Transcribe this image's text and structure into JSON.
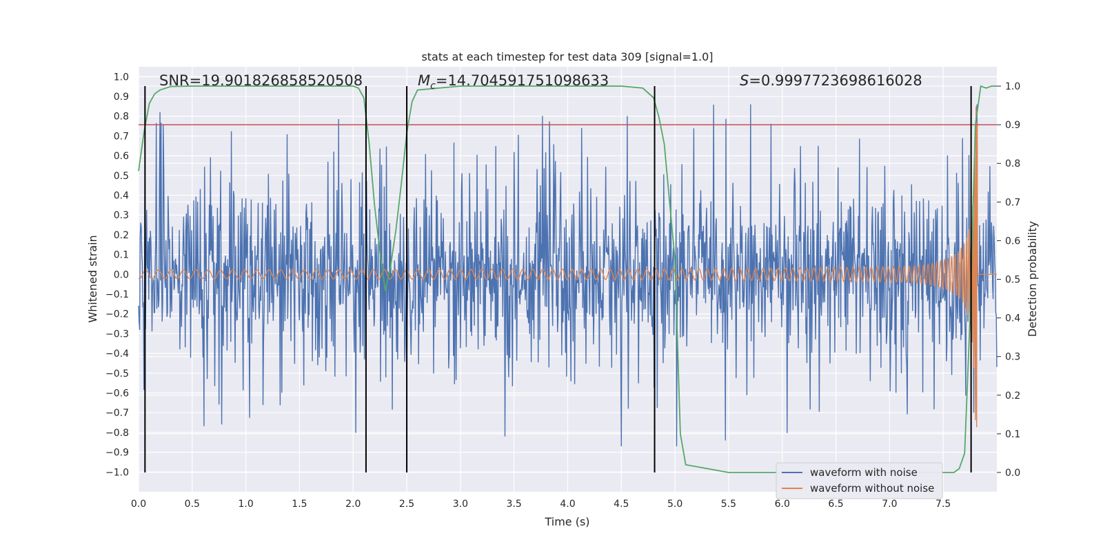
{
  "chart_data": {
    "type": "line",
    "title": "stats at each timestep for test data 309 [signal=1.0]",
    "xlabel": "Time (s)",
    "ylabel_left": "Whitened strain",
    "ylabel_right": "Detection probability",
    "xlim": [
      0.0,
      8.0
    ],
    "ylim_left": [
      -1.1,
      1.05
    ],
    "ylim_right": [
      -0.05,
      1.05
    ],
    "x_ticks": [
      "0.0",
      "0.5",
      "1.0",
      "1.5",
      "2.0",
      "2.5",
      "3.0",
      "3.5",
      "4.0",
      "4.5",
      "5.0",
      "5.5",
      "6.0",
      "6.5",
      "7.0",
      "7.5"
    ],
    "y_left_ticks": [
      "1.0",
      "0.9",
      "0.8",
      "0.7",
      "0.6",
      "0.5",
      "0.4",
      "0.3",
      "0.2",
      "0.1",
      "0.0",
      "−0.1",
      "−0.2",
      "−0.3",
      "−0.4",
      "−0.5",
      "−0.6",
      "−0.7",
      "−0.8",
      "−0.9",
      "−1.0"
    ],
    "y_right_ticks": [
      "1.0",
      "0.9",
      "0.8",
      "0.7",
      "0.6",
      "0.5",
      "0.4",
      "0.3",
      "0.2",
      "0.1",
      "0.0"
    ],
    "threshold": {
      "value": 0.9,
      "axis": "right",
      "color": "#c44e52"
    },
    "vertical_markers": [
      0.06,
      2.12,
      2.5,
      4.81,
      7.76
    ],
    "annotations": {
      "snr": {
        "label": "SNR",
        "value": "19.901826858520508"
      },
      "chirp_mass": {
        "label": "M",
        "subscript": "c",
        "value": "14.704591751098633"
      },
      "spin": {
        "label": "S",
        "value": "0.9997723698616028"
      }
    },
    "series": [
      {
        "name": "waveform with noise",
        "axis": "left",
        "color": "#4c72b0",
        "description": "noisy whitened strain, amplitude roughly ±0.5 with spikes to ±0.85"
      },
      {
        "name": "waveform without noise",
        "axis": "left",
        "color": "#dd8452",
        "description": "chirp signal, amplitude ~0.02 at t=0 growing to ~0.85 at merger t≈7.8 s, zero afterwards"
      },
      {
        "name": "detection probability",
        "axis": "right",
        "color": "#55a868",
        "x": [
          0.0,
          0.05,
          0.1,
          0.15,
          0.2,
          0.3,
          0.5,
          1.0,
          1.5,
          2.0,
          2.05,
          2.1,
          2.15,
          2.2,
          2.25,
          2.3,
          2.35,
          2.4,
          2.45,
          2.5,
          2.55,
          2.6,
          3.0,
          3.5,
          4.0,
          4.5,
          4.7,
          4.8,
          4.85,
          4.9,
          4.95,
          5.0,
          5.05,
          5.1,
          5.5,
          6.0,
          6.5,
          7.0,
          7.5,
          7.6,
          7.65,
          7.7,
          7.75,
          7.8,
          7.85,
          7.9,
          7.95,
          8.0
        ],
        "values": [
          0.78,
          0.88,
          0.955,
          0.98,
          0.99,
          0.999,
          1.0,
          1.0,
          1.0,
          1.0,
          0.995,
          0.97,
          0.85,
          0.69,
          0.57,
          0.47,
          0.535,
          0.63,
          0.75,
          0.88,
          0.96,
          0.99,
          1.0,
          1.0,
          1.0,
          1.0,
          0.995,
          0.97,
          0.92,
          0.85,
          0.7,
          0.55,
          0.1,
          0.02,
          0.0,
          0.0,
          0.0,
          0.0,
          0.0,
          0.0,
          0.01,
          0.05,
          0.4,
          0.9,
          1.0,
          0.995,
          1.0,
          1.0
        ]
      }
    ],
    "legend": [
      "waveform with noise",
      "waveform without noise"
    ],
    "legend_position": "bottom-right",
    "grid": true
  }
}
